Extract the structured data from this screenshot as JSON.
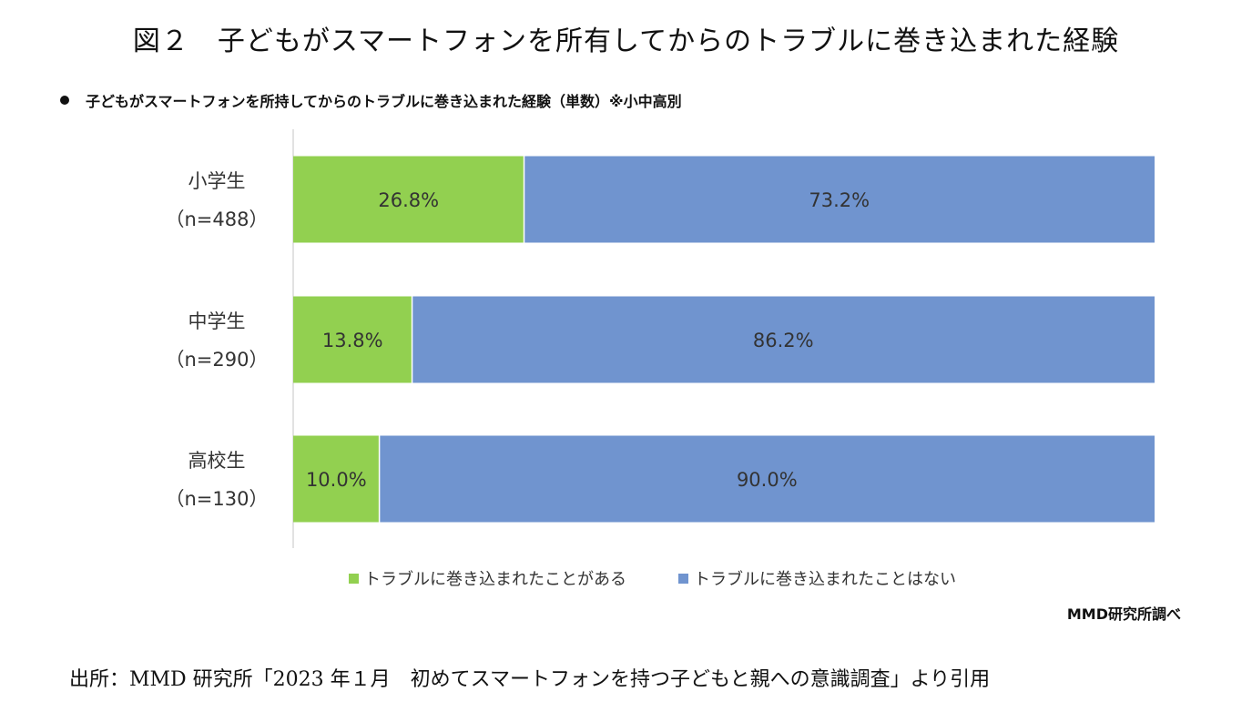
{
  "figure_title": "図２　子どもがスマートフォンを所有してからのトラブルに巻き込まれた経験",
  "credit": "MMD研究所調べ",
  "source": "出所：MMD 研究所「2023 年１月　初めてスマートフォンを持つ子どもと親への意識調査」より引用",
  "colors": {
    "green": "#92d050",
    "blue": "#7094cf",
    "axis": "#d9d9d9"
  },
  "chart_data": {
    "type": "bar",
    "orientation": "horizontal",
    "stacked": true,
    "title": "子どもがスマートフォンを所持してからのトラブルに巻き込まれた経験（単数）※小中高別",
    "categories": [
      [
        "小学生",
        "（n=488）"
      ],
      [
        "中学生",
        "（n=290）"
      ],
      [
        "高校生",
        "（n=130）"
      ]
    ],
    "series": [
      {
        "name": "トラブルに巻き込まれたことがある",
        "color": "#92d050",
        "values": [
          26.8,
          13.8,
          10.0
        ],
        "labels": [
          "26.8%",
          "13.8%",
          "10.0%"
        ]
      },
      {
        "name": "トラブルに巻き込まれたことはない",
        "color": "#7094cf",
        "values": [
          73.2,
          86.2,
          90.0
        ],
        "labels": [
          "73.2%",
          "86.2%",
          "90.0%"
        ]
      }
    ],
    "xlim": [
      0,
      100
    ],
    "unit": "%",
    "legend": "bottom",
    "grid": false
  }
}
